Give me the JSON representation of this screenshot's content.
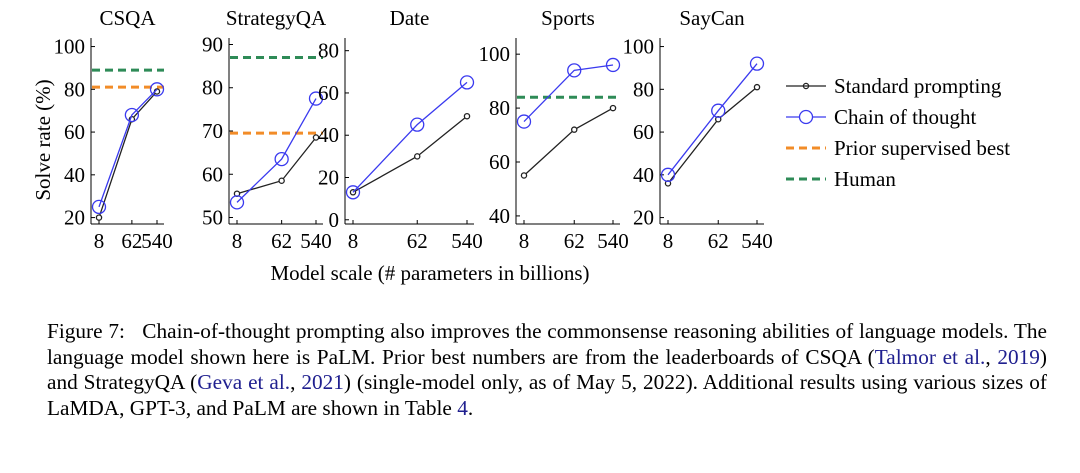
{
  "figure": {
    "ylabel": "Solve rate (%)",
    "xlabel": "Model scale (# parameters in billions)",
    "x_ticks": [
      "8",
      "62",
      "540"
    ]
  },
  "legend": {
    "position": "right",
    "entries": [
      {
        "label": "Standard prompting",
        "color": "#222222",
        "style": "line-small-circle"
      },
      {
        "label": "Chain of thought",
        "color": "#3a3aef",
        "style": "line-large-circle"
      },
      {
        "label": "Prior supervised best",
        "color": "#f28c28",
        "style": "dashed"
      },
      {
        "label": "Human",
        "color": "#2e8b57",
        "style": "dashed"
      }
    ]
  },
  "chart_data": [
    {
      "type": "line",
      "title": "CSQA",
      "categories": [
        "8",
        "62",
        "540"
      ],
      "ylim": [
        17,
        104
      ],
      "yticks": [
        20,
        40,
        60,
        80,
        100
      ],
      "series": [
        {
          "name": "Standard prompting",
          "values": [
            20,
            66,
            79
          ]
        },
        {
          "name": "Chain of thought",
          "values": [
            25,
            68,
            80
          ]
        }
      ],
      "hlines": [
        {
          "name": "Prior supervised best",
          "value": 81
        },
        {
          "name": "Human",
          "value": 89
        }
      ]
    },
    {
      "type": "line",
      "title": "StrategyQA",
      "categories": [
        "8",
        "62",
        "540"
      ],
      "ylim": [
        48.5,
        91.5
      ],
      "yticks": [
        50,
        60,
        70,
        80,
        90
      ],
      "series": [
        {
          "name": "Standard prompting",
          "values": [
            55.5,
            58.5,
            68.5
          ]
        },
        {
          "name": "Chain of thought",
          "values": [
            53.5,
            63.5,
            77.5
          ]
        }
      ],
      "hlines": [
        {
          "name": "Prior supervised best",
          "value": 69.5
        },
        {
          "name": "Human",
          "value": 87
        }
      ]
    },
    {
      "type": "line",
      "title": "Date",
      "categories": [
        "8",
        "62",
        "540"
      ],
      "ylim": [
        -2,
        86
      ],
      "yticks": [
        0,
        20,
        40,
        60,
        80
      ],
      "series": [
        {
          "name": "Standard prompting",
          "values": [
            13,
            30,
            49
          ]
        },
        {
          "name": "Chain of thought",
          "values": [
            13,
            45,
            65
          ]
        }
      ],
      "hlines": []
    },
    {
      "type": "line",
      "title": "Sports",
      "categories": [
        "8",
        "62",
        "540"
      ],
      "ylim": [
        37,
        106
      ],
      "yticks": [
        40,
        60,
        80,
        100
      ],
      "series": [
        {
          "name": "Standard prompting",
          "values": [
            55,
            72,
            80
          ]
        },
        {
          "name": "Chain of thought",
          "values": [
            75,
            94,
            96
          ]
        }
      ],
      "hlines": [
        {
          "name": "Human",
          "value": 84
        }
      ]
    },
    {
      "type": "line",
      "title": "SayCan",
      "categories": [
        "8",
        "62",
        "540"
      ],
      "ylim": [
        17,
        104
      ],
      "yticks": [
        20,
        40,
        60,
        80,
        100
      ],
      "series": [
        {
          "name": "Standard prompting",
          "values": [
            36,
            66,
            81
          ]
        },
        {
          "name": "Chain of thought",
          "values": [
            40,
            70,
            92
          ]
        }
      ],
      "hlines": []
    }
  ],
  "caption": {
    "label": "Figure 7:",
    "part1": "Chain-of-thought prompting also improves the commonsense reasoning abilities of language models. The language model shown here is PaLM. Prior best numbers are from the leaderboards of CSQA (",
    "cite1_author": "Talmor et al.",
    "sep1": ", ",
    "cite1_year": "2019",
    "part2": ") and StrategyQA (",
    "cite2_author": "Geva et al.",
    "sep2": ", ",
    "cite2_year": "2021",
    "part3": ") (single-model only, as of May 5, 2022). Additional results using various sizes of LaMDA, GPT-3, and PaLM are shown in Table ",
    "table_ref": "4",
    "part4": "."
  }
}
